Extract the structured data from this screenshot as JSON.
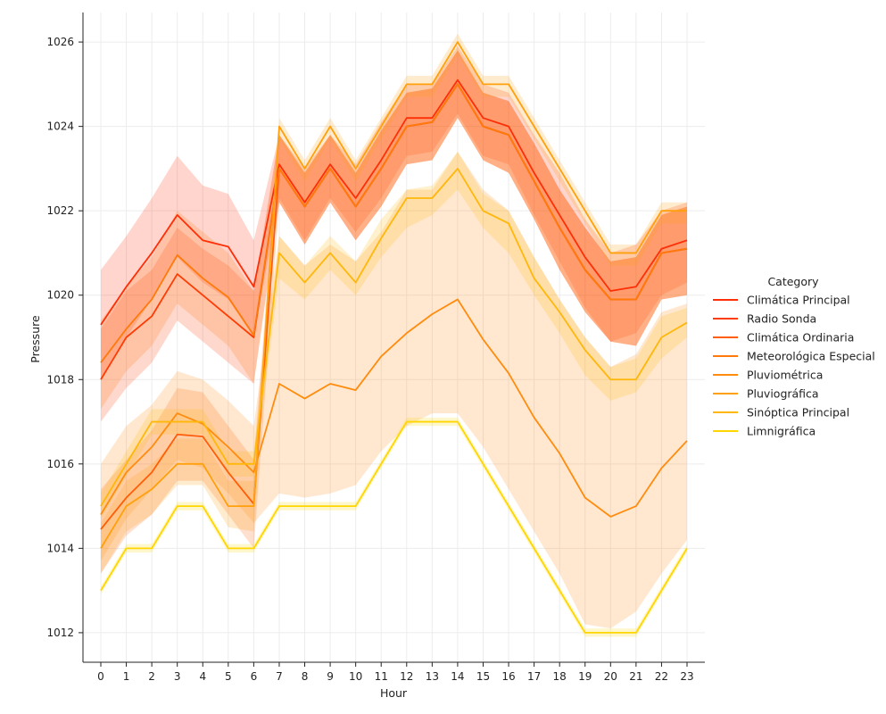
{
  "chart_data": {
    "type": "line",
    "xlabel": "Hour",
    "ylabel": "Pressure",
    "x": [
      0,
      1,
      2,
      3,
      4,
      5,
      6,
      7,
      8,
      9,
      10,
      11,
      12,
      13,
      14,
      15,
      16,
      17,
      18,
      19,
      20,
      21,
      22,
      23
    ],
    "xticks": [
      "0",
      "1",
      "2",
      "3",
      "4",
      "5",
      "6",
      "7",
      "8",
      "9",
      "10",
      "11",
      "12",
      "13",
      "14",
      "15",
      "16",
      "17",
      "18",
      "19",
      "20",
      "21",
      "22",
      "23"
    ],
    "yticks": [
      "1012",
      "1014",
      "1016",
      "1018",
      "1020",
      "1022",
      "1024",
      "1026"
    ],
    "ylim": [
      1011.3,
      1026.7
    ],
    "xlim": [
      -0.7,
      23.7
    ],
    "grid": true,
    "legend": {
      "title": "Category",
      "position": "right"
    },
    "series": [
      {
        "name": "Climática Principal",
        "color": "#fe2f07",
        "values": [
          1019.3,
          1020.2,
          1021.0,
          1021.9,
          1021.3,
          1021.15,
          1020.2,
          1023.1,
          1022.2,
          1023.1,
          1022.3,
          1023.2,
          1024.2,
          1024.2,
          1025.1,
          1024.2,
          1024.0,
          1022.9,
          1021.9,
          1020.9,
          1020.1,
          1020.2,
          1021.1,
          1021.3
        ],
        "lower": [
          1018.0,
          1019.0,
          1019.9,
          1020.9,
          1020.3,
          1019.9,
          1019.0,
          1022.3,
          1021.3,
          1022.3,
          1021.5,
          1022.3,
          1023.3,
          1023.4,
          1024.3,
          1023.3,
          1023.1,
          1021.9,
          1020.8,
          1019.7,
          1018.9,
          1019.1,
          1020.0,
          1020.3
        ],
        "upper": [
          1020.6,
          1021.4,
          1022.3,
          1023.3,
          1022.6,
          1022.4,
          1021.3,
          1023.8,
          1023.0,
          1023.8,
          1023.1,
          1024.1,
          1025.0,
          1025.0,
          1025.9,
          1025.0,
          1024.8,
          1023.8,
          1022.9,
          1021.8,
          1021.0,
          1021.2,
          1022.0,
          1022.2
        ]
      },
      {
        "name": "Radio Sonda",
        "color": "#fe3d06",
        "values": [
          1018.0,
          1019.0,
          1019.5,
          1020.5,
          1020.0,
          1019.5,
          1019.0,
          1023.0,
          1022.1,
          1023.0,
          1022.1,
          1023.0,
          1024.0,
          1024.1,
          1025.0,
          1024.0,
          1023.8,
          1022.7,
          1021.6,
          1020.6,
          1019.9,
          1019.9,
          1021.0,
          1021.1
        ],
        "lower": [
          1017.0,
          1017.8,
          1018.4,
          1019.4,
          1018.9,
          1018.4,
          1017.9,
          1022.2,
          1021.2,
          1022.2,
          1021.3,
          1022.1,
          1023.1,
          1023.2,
          1024.2,
          1023.2,
          1022.9,
          1021.8,
          1020.6,
          1019.6,
          1018.9,
          1018.8,
          1019.9,
          1020.0
        ],
        "upper": [
          1019.2,
          1020.1,
          1020.6,
          1021.6,
          1021.1,
          1020.7,
          1020.1,
          1023.8,
          1022.9,
          1023.8,
          1022.9,
          1023.9,
          1024.8,
          1024.9,
          1025.8,
          1024.8,
          1024.6,
          1023.6,
          1022.5,
          1021.6,
          1020.8,
          1020.9,
          1021.9,
          1022.1
        ]
      },
      {
        "name": "Climática Ordinaria",
        "color": "#ff5d08",
        "values": [
          1014.45,
          1015.2,
          1015.8,
          1016.7,
          1016.65,
          1015.8,
          1015.05,
          1023.0,
          1022.1,
          1023.0,
          1022.1,
          1023.0,
          1024.0,
          1024.1,
          1025.0,
          1024.0,
          1023.8,
          1022.7,
          1021.6,
          1020.6,
          1019.9,
          1019.9,
          1021.0,
          1021.1
        ],
        "lower": [
          1013.4,
          1014.3,
          1014.8,
          1015.6,
          1015.6,
          1014.8,
          1014.0,
          1022.2,
          1021.2,
          1022.2,
          1021.3,
          1022.1,
          1023.1,
          1023.2,
          1024.2,
          1023.2,
          1022.9,
          1021.8,
          1020.6,
          1019.6,
          1018.9,
          1018.8,
          1019.9,
          1020.0
        ],
        "upper": [
          1015.4,
          1016.1,
          1016.8,
          1017.8,
          1017.7,
          1016.9,
          1016.1,
          1023.8,
          1022.9,
          1023.8,
          1022.9,
          1023.9,
          1024.8,
          1024.9,
          1025.8,
          1024.8,
          1024.6,
          1023.6,
          1022.5,
          1021.6,
          1020.8,
          1020.9,
          1021.9,
          1022.1
        ]
      },
      {
        "name": "Meteorológica Especial",
        "color": "#ff7a0a",
        "values": [
          1018.4,
          1019.2,
          1019.9,
          1020.95,
          1020.4,
          1019.95,
          1019.05,
          1023.0,
          1022.1,
          1023.0,
          1022.1,
          1023.0,
          1024.0,
          1024.1,
          1025.0,
          1024.0,
          1023.8,
          1022.7,
          1021.6,
          1020.6,
          1019.9,
          1019.9,
          1021.0,
          1021.1
        ],
        "lower": [
          1017.3,
          1018.2,
          1018.8,
          1019.8,
          1019.3,
          1018.8,
          1017.9,
          1022.2,
          1021.2,
          1022.2,
          1021.3,
          1022.1,
          1023.1,
          1023.2,
          1024.2,
          1023.2,
          1022.9,
          1021.8,
          1020.6,
          1019.6,
          1018.9,
          1018.8,
          1019.9,
          1020.0
        ],
        "upper": [
          1019.4,
          1020.2,
          1020.9,
          1022.0,
          1021.5,
          1021.0,
          1020.1,
          1023.8,
          1022.9,
          1023.8,
          1022.9,
          1023.9,
          1024.8,
          1024.9,
          1025.8,
          1024.8,
          1024.6,
          1023.6,
          1022.5,
          1021.6,
          1020.8,
          1020.9,
          1021.9,
          1022.1
        ]
      },
      {
        "name": "Pluviométrica",
        "color": "#ff8c0f",
        "values": [
          1014.8,
          1015.8,
          1016.4,
          1017.2,
          1016.95,
          1016.4,
          1015.8,
          1017.9,
          1017.55,
          1017.9,
          1017.75,
          1018.55,
          1019.1,
          1019.55,
          1019.9,
          1018.95,
          1018.15,
          1017.1,
          1016.25,
          1015.2,
          1014.75,
          1015.0,
          1015.9,
          1016.55
        ],
        "lower": [
          1013.7,
          1014.7,
          1015.4,
          1016.1,
          1015.9,
          1015.3,
          1014.6,
          1015.3,
          1015.2,
          1015.3,
          1015.5,
          1016.3,
          1016.9,
          1017.2,
          1017.2,
          1016.4,
          1015.4,
          1014.4,
          1013.4,
          1012.2,
          1012.1,
          1012.5,
          1013.4,
          1014.2
        ],
        "upper": [
          1016.0,
          1016.9,
          1017.4,
          1018.2,
          1018.0,
          1017.5,
          1016.9,
          1021.4,
          1020.7,
          1021.2,
          1020.8,
          1021.5,
          1022.5,
          1022.5,
          1023.4,
          1022.5,
          1022.0,
          1020.9,
          1019.9,
          1019.0,
          1018.3,
          1018.6,
          1019.6,
          1019.8
        ]
      },
      {
        "name": "Pluviográfica",
        "color": "#ffa00c",
        "values": [
          1014.0,
          1015.0,
          1015.4,
          1016.0,
          1016.0,
          1015.0,
          1015.0,
          1024.0,
          1023.0,
          1024.0,
          1023.0,
          1024.0,
          1025.0,
          1025.0,
          1026.0,
          1025.0,
          1025.0,
          1024.0,
          1023.0,
          1022.0,
          1021.0,
          1021.0,
          1022.0,
          1022.0
        ],
        "lower": [
          1013.4,
          1014.4,
          1014.8,
          1015.5,
          1015.5,
          1014.5,
          1014.4,
          1023.7,
          1022.7,
          1023.7,
          1022.7,
          1023.7,
          1024.7,
          1024.7,
          1025.7,
          1024.7,
          1024.7,
          1023.7,
          1022.7,
          1021.7,
          1020.7,
          1020.7,
          1021.7,
          1021.7
        ],
        "upper": [
          1014.6,
          1015.6,
          1016.0,
          1016.6,
          1016.6,
          1015.6,
          1015.6,
          1024.2,
          1023.2,
          1024.2,
          1023.2,
          1024.2,
          1025.2,
          1025.2,
          1026.2,
          1025.2,
          1025.2,
          1024.2,
          1023.2,
          1022.2,
          1021.2,
          1021.2,
          1022.2,
          1022.2
        ]
      },
      {
        "name": "Sinóptica Principal",
        "color": "#ffb70a",
        "values": [
          1015.0,
          1016.0,
          1017.0,
          1017.0,
          1017.0,
          1016.0,
          1016.0,
          1021.0,
          1020.3,
          1021.0,
          1020.3,
          1021.35,
          1022.3,
          1022.3,
          1023.0,
          1022.0,
          1021.7,
          1020.4,
          1019.6,
          1018.7,
          1018.0,
          1018.0,
          1019.0,
          1019.35
        ],
        "lower": [
          1014.7,
          1015.7,
          1016.7,
          1016.7,
          1016.7,
          1015.7,
          1015.7,
          1020.4,
          1019.9,
          1020.6,
          1020.0,
          1020.9,
          1021.6,
          1021.9,
          1022.5,
          1021.6,
          1021.0,
          1020.0,
          1019.1,
          1018.1,
          1017.5,
          1017.7,
          1018.5,
          1019.0
        ],
        "upper": [
          1015.3,
          1016.3,
          1017.3,
          1017.3,
          1017.3,
          1016.3,
          1016.3,
          1021.4,
          1020.7,
          1021.4,
          1020.8,
          1021.8,
          1022.5,
          1022.6,
          1023.4,
          1022.4,
          1022.0,
          1020.9,
          1019.9,
          1019.0,
          1018.3,
          1018.5,
          1019.5,
          1019.7
        ]
      },
      {
        "name": "Limnigráfica",
        "color": "#ffd600",
        "values": [
          1013.0,
          1014.0,
          1014.0,
          1015.0,
          1015.0,
          1014.0,
          1014.0,
          1015.0,
          1015.0,
          1015.0,
          1015.0,
          1016.0,
          1017.0,
          1017.0,
          1017.0,
          1016.0,
          1015.0,
          1014.0,
          1013.0,
          1012.0,
          1012.0,
          1012.0,
          1013.0,
          1014.0
        ],
        "lower": [
          1012.9,
          1013.9,
          1013.9,
          1014.9,
          1014.9,
          1013.9,
          1013.9,
          1014.9,
          1014.9,
          1014.9,
          1014.9,
          1015.9,
          1016.9,
          1016.9,
          1016.9,
          1015.9,
          1014.9,
          1013.9,
          1012.9,
          1011.9,
          1011.9,
          1011.9,
          1012.9,
          1013.9
        ],
        "upper": [
          1013.1,
          1014.1,
          1014.1,
          1015.1,
          1015.1,
          1014.1,
          1014.1,
          1015.1,
          1015.1,
          1015.1,
          1015.1,
          1016.1,
          1017.1,
          1017.1,
          1017.1,
          1016.1,
          1015.1,
          1014.1,
          1013.1,
          1012.1,
          1012.1,
          1012.1,
          1013.1,
          1014.1
        ]
      }
    ]
  }
}
